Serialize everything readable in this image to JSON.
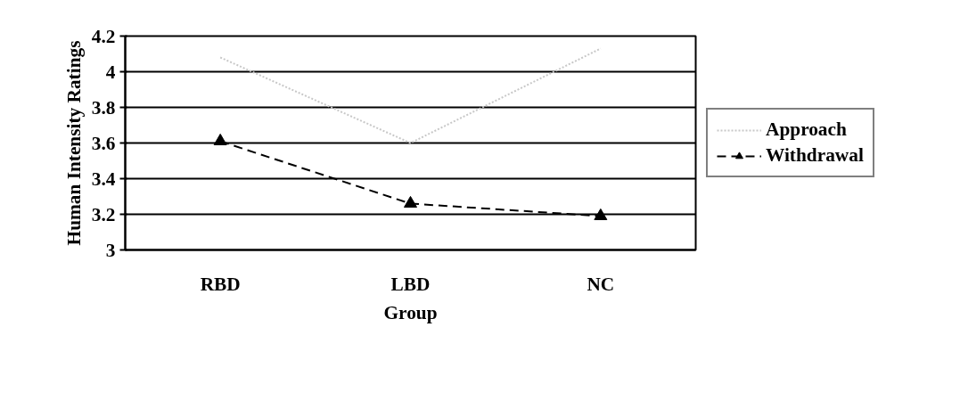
{
  "chart_data": {
    "type": "line",
    "xlabel": "Group",
    "ylabel": "Human Intensity Ratings",
    "categories": [
      "RBD",
      "LBD",
      "NC"
    ],
    "series": [
      {
        "name": "Approach",
        "color": "#c8c8c8",
        "values": [
          4.08,
          3.6,
          4.13
        ],
        "marker": "none",
        "line_style": "dotted"
      },
      {
        "name": "Withdrawal",
        "color": "#000000",
        "values": [
          3.61,
          3.26,
          3.19
        ],
        "marker": "triangle",
        "line_style": "dashed"
      }
    ],
    "ylim": [
      3,
      4.2
    ],
    "yticks": [
      3,
      3.2,
      3.4,
      3.6,
      3.8,
      4,
      4.2
    ],
    "grid": "y",
    "legend": "right"
  }
}
